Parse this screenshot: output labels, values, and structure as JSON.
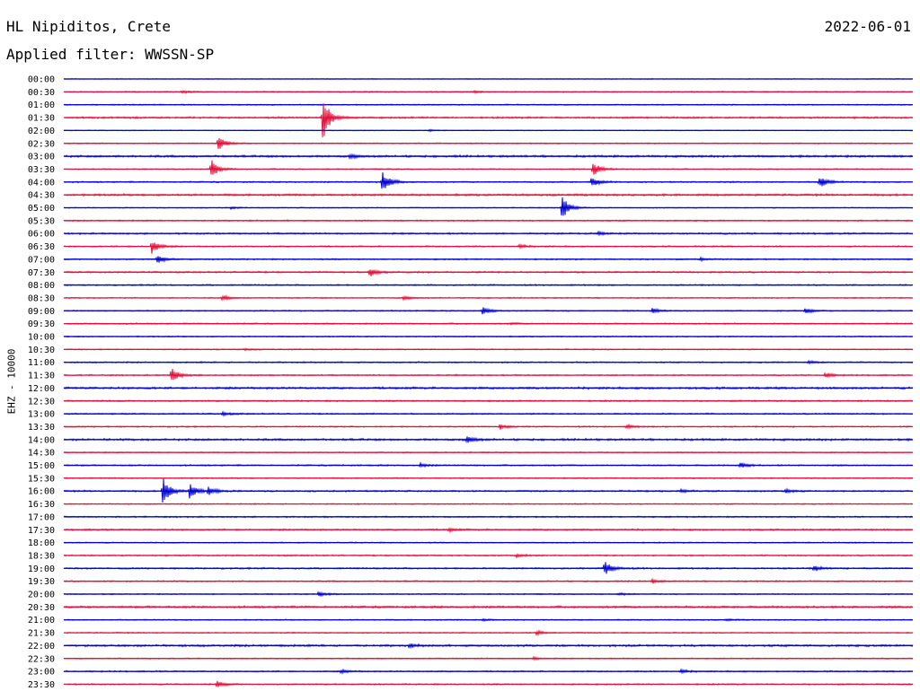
{
  "header": {
    "station": "HL Nipiditos, Crete",
    "date": "2022-06-01",
    "filter": "Applied filter: WWSSN-SP"
  },
  "chart_data": {
    "type": "line",
    "ylabel": "EHZ - 10000",
    "row_colors": [
      "#0000d0",
      "#e0103a"
    ],
    "rows": [
      {
        "label": "00:00",
        "events": [],
        "noise": 0.3
      },
      {
        "label": "00:30",
        "events": [
          {
            "t": 4.2,
            "a": 1.5
          },
          {
            "t": 14.5,
            "a": 1.2
          }
        ],
        "noise": 0.5
      },
      {
        "label": "01:00",
        "events": [],
        "noise": 0.5
      },
      {
        "label": "01:30",
        "events": [
          {
            "t": 9.15,
            "a": 26
          }
        ],
        "noise": 0.8
      },
      {
        "label": "02:00",
        "events": [
          {
            "t": 12.9,
            "a": 1.2
          }
        ],
        "noise": 0.3
      },
      {
        "label": "02:30",
        "events": [
          {
            "t": 5.45,
            "a": 8
          }
        ],
        "noise": 0.5
      },
      {
        "label": "03:00",
        "events": [
          {
            "t": 10.1,
            "a": 2
          }
        ],
        "noise": 0.9
      },
      {
        "label": "03:30",
        "events": [
          {
            "t": 5.2,
            "a": 11
          },
          {
            "t": 18.7,
            "a": 8
          }
        ],
        "noise": 0.5
      },
      {
        "label": "04:00",
        "events": [
          {
            "t": 11.25,
            "a": 13
          },
          {
            "t": 18.65,
            "a": 6
          },
          {
            "t": 26.7,
            "a": 7
          }
        ],
        "noise": 0.6
      },
      {
        "label": "04:30",
        "events": [],
        "noise": 0.9
      },
      {
        "label": "05:00",
        "events": [
          {
            "t": 17.6,
            "a": 14
          },
          {
            "t": 5.9,
            "a": 1.2
          }
        ],
        "noise": 0.4
      },
      {
        "label": "05:30",
        "events": [],
        "noise": 0.6
      },
      {
        "label": "06:00",
        "events": [
          {
            "t": 18.9,
            "a": 2
          }
        ],
        "noise": 0.7
      },
      {
        "label": "06:30",
        "events": [
          {
            "t": 3.1,
            "a": 8
          },
          {
            "t": 16.1,
            "a": 2
          }
        ],
        "noise": 0.6
      },
      {
        "label": "07:00",
        "events": [
          {
            "t": 3.3,
            "a": 5
          },
          {
            "t": 22.5,
            "a": 1.5
          }
        ],
        "noise": 0.6
      },
      {
        "label": "07:30",
        "events": [
          {
            "t": 10.8,
            "a": 5
          }
        ],
        "noise": 0.7
      },
      {
        "label": "08:00",
        "events": [],
        "noise": 0.6
      },
      {
        "label": "08:30",
        "events": [
          {
            "t": 5.6,
            "a": 3
          },
          {
            "t": 12,
            "a": 2
          }
        ],
        "noise": 0.5
      },
      {
        "label": "09:00",
        "events": [
          {
            "t": 14.8,
            "a": 5
          },
          {
            "t": 20.8,
            "a": 3
          },
          {
            "t": 26.2,
            "a": 3
          }
        ],
        "noise": 0.5
      },
      {
        "label": "09:30",
        "events": [
          {
            "t": 15.8,
            "a": 1
          }
        ],
        "noise": 0.6
      },
      {
        "label": "10:00",
        "events": [],
        "noise": 0.5
      },
      {
        "label": "10:30",
        "events": [
          {
            "t": 6.4,
            "a": 1
          }
        ],
        "noise": 0.5
      },
      {
        "label": "11:00",
        "events": [
          {
            "t": 26.3,
            "a": 2
          }
        ],
        "noise": 0.6
      },
      {
        "label": "11:30",
        "events": [
          {
            "t": 3.8,
            "a": 9
          },
          {
            "t": 26.9,
            "a": 3
          }
        ],
        "noise": 0.6
      },
      {
        "label": "12:00",
        "events": [],
        "noise": 0.9
      },
      {
        "label": "12:30",
        "events": [],
        "noise": 0.7
      },
      {
        "label": "13:00",
        "events": [
          {
            "t": 5.6,
            "a": 2
          }
        ],
        "noise": 0.6
      },
      {
        "label": "13:30",
        "events": [
          {
            "t": 15.4,
            "a": 3
          },
          {
            "t": 19.9,
            "a": 2
          }
        ],
        "noise": 0.6
      },
      {
        "label": "14:00",
        "events": [
          {
            "t": 14.25,
            "a": 4
          }
        ],
        "noise": 0.9
      },
      {
        "label": "14:30",
        "events": [],
        "noise": 0.5
      },
      {
        "label": "15:00",
        "events": [
          {
            "t": 12.6,
            "a": 2
          },
          {
            "t": 23.9,
            "a": 3
          }
        ],
        "noise": 0.6
      },
      {
        "label": "15:30",
        "events": [],
        "noise": 0.5
      },
      {
        "label": "16:00",
        "events": [
          {
            "t": 3.5,
            "a": 15
          },
          {
            "t": 4.45,
            "a": 9
          },
          {
            "t": 5.1,
            "a": 5
          },
          {
            "t": 21.8,
            "a": 2
          },
          {
            "t": 25.5,
            "a": 2
          }
        ],
        "noise": 0.7
      },
      {
        "label": "16:30",
        "events": [],
        "noise": 0.5
      },
      {
        "label": "17:00",
        "events": [],
        "noise": 0.6
      },
      {
        "label": "17:30",
        "events": [
          {
            "t": 13.6,
            "a": 2
          }
        ],
        "noise": 0.7
      },
      {
        "label": "18:00",
        "events": [],
        "noise": 0.5
      },
      {
        "label": "18:30",
        "events": [
          {
            "t": 16,
            "a": 1.5
          }
        ],
        "noise": 0.6
      },
      {
        "label": "19:00",
        "events": [
          {
            "t": 19.1,
            "a": 8
          },
          {
            "t": 26.5,
            "a": 3
          }
        ],
        "noise": 0.7
      },
      {
        "label": "19:30",
        "events": [
          {
            "t": 20.8,
            "a": 2
          }
        ],
        "noise": 0.6
      },
      {
        "label": "20:00",
        "events": [
          {
            "t": 9,
            "a": 3
          },
          {
            "t": 19.6,
            "a": 1.5
          }
        ],
        "noise": 0.5
      },
      {
        "label": "20:30",
        "events": [],
        "noise": 0.9
      },
      {
        "label": "21:00",
        "events": [
          {
            "t": 14.8,
            "a": 1.5
          },
          {
            "t": 23.4,
            "a": 1.2
          }
        ],
        "noise": 0.5
      },
      {
        "label": "21:30",
        "events": [
          {
            "t": 16.7,
            "a": 2.5
          }
        ],
        "noise": 0.5
      },
      {
        "label": "22:00",
        "events": [
          {
            "t": 12.2,
            "a": 2
          }
        ],
        "noise": 0.9
      },
      {
        "label": "22:30",
        "events": [
          {
            "t": 16.6,
            "a": 1.5
          }
        ],
        "noise": 0.5
      },
      {
        "label": "23:00",
        "events": [
          {
            "t": 9.8,
            "a": 2
          },
          {
            "t": 21.8,
            "a": 2
          }
        ],
        "noise": 0.6
      },
      {
        "label": "23:30",
        "events": [
          {
            "t": 5.4,
            "a": 4
          }
        ],
        "noise": 0.6
      }
    ],
    "minutes_per_row": 30
  }
}
